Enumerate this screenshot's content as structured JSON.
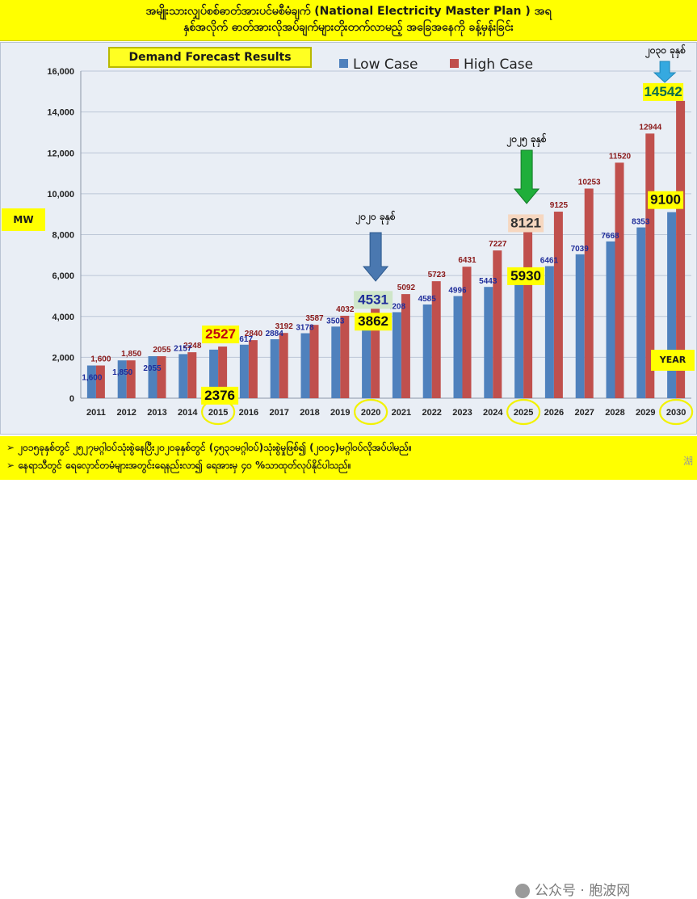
{
  "header": {
    "title_line1": "အမျိုးသားလျှပ်စစ်ဓာတ်အားပင်မစီမံချက် (National Electricity Master Plan ) အရ",
    "title_line2": "နှစ်အလိုက် ဓာတ်အားလိုအပ်ချက်များတိုးတက်လာမည့် အခြေအနေကို ခန့်မှန်းခြင်း"
  },
  "footer": {
    "line1": "၂၀၁၅ခုနှစ်တွင် ၂၅၂၇မဂ္ဂါဝပ်သုံးစွဲနေပြီး၂၀၂၀ခုနှစ်တွင် (၄၅၃၁မဂ္ဂါဝပ်)သုံးစွဲမှုဖြစ်၍ (၂၀၀၄)မဂ္ဂါဝပ်လိုအပ်ပါမည်။",
    "line2": "နေရာသီတွင် ရေလှောင်တမံများအတွင်းရေနည်းလာ၍ ရေအားမှ ၄၀ %သာထုတ်လုပ်နိုင်ပါသည်။",
    "bullet": "➢",
    "watermark": "公众号 · 胞波网",
    "watermark_tail": "湖"
  },
  "chart_data": {
    "type": "bar",
    "title": "Demand Forecast Results",
    "ylabel": "MW",
    "xlabel": "YEAR",
    "ylim": [
      0,
      16000
    ],
    "yticks": [
      "0",
      "2,000",
      "4,000",
      "6,000",
      "8,000",
      "10,000",
      "12,000",
      "14,000",
      "16,000"
    ],
    "grid": true,
    "legend_position": "top",
    "categories": [
      "2011",
      "2012",
      "2013",
      "2014",
      "2015",
      "2016",
      "2017",
      "2018",
      "2019",
      "2020",
      "2021",
      "2022",
      "2023",
      "2024",
      "2025",
      "2026",
      "2027",
      "2028",
      "2029",
      "2030"
    ],
    "series": [
      {
        "name": "Low Case",
        "color": "#4f81bd",
        "values": [
          1600,
          1850,
          2055,
          2157,
          2376,
          2617,
          2884,
          3178,
          3503,
          3862,
          4208,
          4585,
          4996,
          5443,
          5930,
          6461,
          7039,
          7668,
          8353,
          9100
        ],
        "labels": [
          "1,600",
          "1,850",
          "2055",
          "2157",
          "2376",
          "2617",
          "2884",
          "3178",
          "3503",
          "3862",
          "4208",
          "4585",
          "4996",
          "5443",
          "5930",
          "6461",
          "7039",
          "7668",
          "8353",
          "9100"
        ]
      },
      {
        "name": "High Case",
        "color": "#c0504d",
        "values": [
          1600,
          1850,
          2055,
          2248,
          2527,
          2840,
          3192,
          3587,
          4032,
          4531,
          5092,
          5723,
          6431,
          7227,
          8121,
          9125,
          10253,
          11520,
          12944,
          14542
        ],
        "labels": [
          "1,600",
          "1,850",
          "2055",
          "2248",
          "2527",
          "2840",
          "3192",
          "3587",
          "4032",
          "4531",
          "5092",
          "5723",
          "6431",
          "7227",
          "8121",
          "9125",
          "10253",
          "11520",
          "12944",
          "14542"
        ]
      }
    ],
    "annotations": {
      "milestones": [
        {
          "year": "2020",
          "label": "၂၀၂၀ ခုနှစ်"
        },
        {
          "year": "2025",
          "label": "၂၀၂၅ ခုနှစ်"
        },
        {
          "year": "2030",
          "label": "၂၀၃၀ ခုနှစ်"
        }
      ],
      "circled_years": [
        "2015",
        "2020",
        "2025",
        "2030"
      ],
      "highlighted_values": [
        "2527",
        "2376",
        "4531",
        "3862",
        "8121",
        "5930",
        "14542",
        "9100"
      ]
    },
    "colors": {
      "low": "#4f81bd",
      "high": "#c0504d",
      "low_label": "#1f2d9a",
      "high_label": "#8b1a1a",
      "grid": "#bcc6d6",
      "highlight": "#ffff00",
      "circle": "#f2f200",
      "arrow_2020": "#4a78b0",
      "arrow_2025": "#1fae3a",
      "arrow_2030": "#35a9e0"
    }
  }
}
